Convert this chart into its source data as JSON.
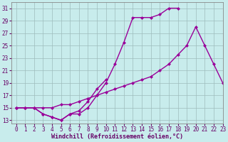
{
  "xlabel": "Windchill (Refroidissement éolien,°C)",
  "bg_color": "#c8ecec",
  "line_color": "#990099",
  "x_all": [
    0,
    1,
    2,
    3,
    4,
    5,
    6,
    7,
    8,
    9,
    10,
    11,
    12,
    13,
    14,
    15,
    16,
    17,
    18,
    19,
    20,
    21,
    22,
    23
  ],
  "line1_y": [
    15,
    15,
    15,
    14,
    13.5,
    13,
    14,
    14,
    15,
    17,
    19,
    22,
    25.5,
    29.5,
    29.5,
    29.5,
    30,
    31,
    31,
    null,
    null,
    null,
    null,
    null
  ],
  "line2_y": [
    15,
    15,
    15,
    14,
    13.5,
    13,
    14,
    14.5,
    16,
    18,
    19.5,
    null,
    null,
    null,
    null,
    null,
    null,
    null,
    null,
    null,
    null,
    null,
    null,
    null
  ],
  "line3_y": [
    15,
    15,
    15,
    15,
    15,
    15.5,
    15.5,
    16,
    16.5,
    17,
    17.5,
    18,
    18.5,
    19,
    19.5,
    20,
    21,
    22,
    23.5,
    25,
    28,
    25,
    22,
    19
  ],
  "xlim": [
    -0.5,
    23
  ],
  "ylim": [
    12.5,
    32
  ],
  "yticks": [
    13,
    15,
    17,
    19,
    21,
    23,
    25,
    27,
    29,
    31
  ],
  "xticks": [
    0,
    1,
    2,
    3,
    4,
    5,
    6,
    7,
    8,
    9,
    10,
    11,
    12,
    13,
    14,
    15,
    16,
    17,
    18,
    19,
    20,
    21,
    22,
    23
  ],
  "markersize": 2.5,
  "linewidth": 1.0,
  "fontsize_xlabel": 6.0,
  "fontsize_ticks": 5.5
}
